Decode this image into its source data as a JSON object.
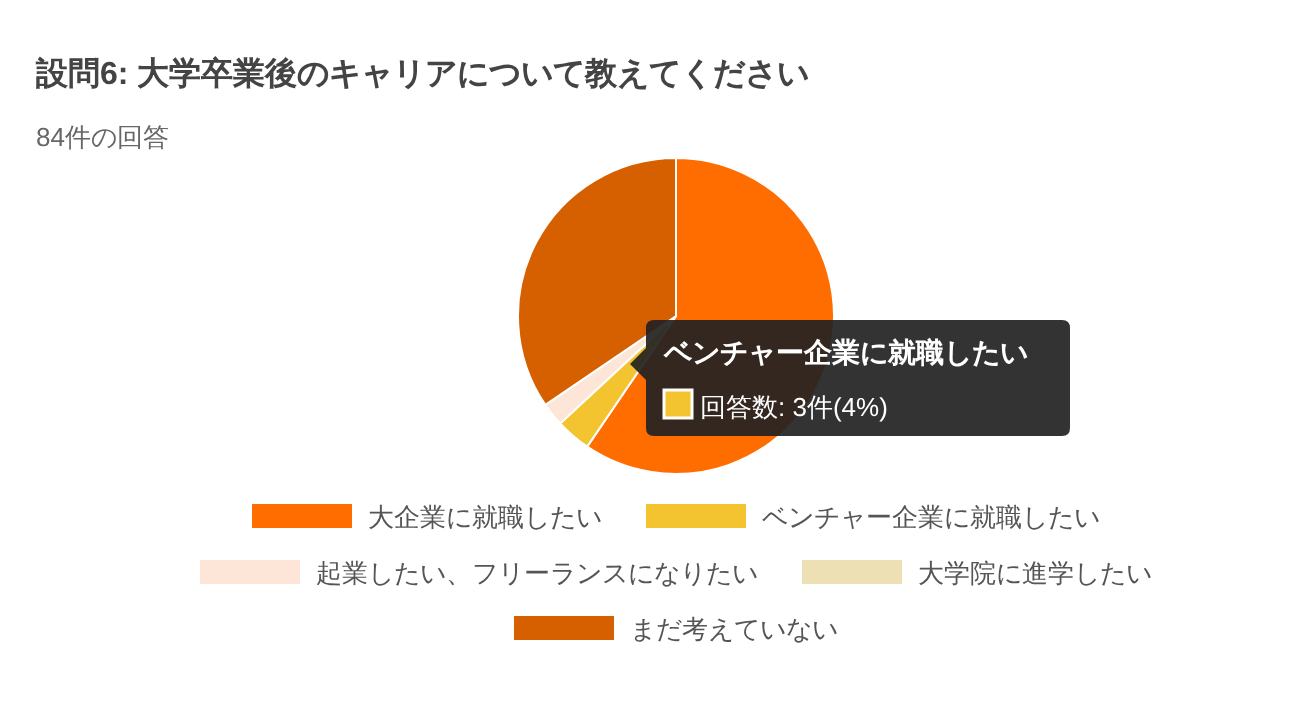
{
  "chart_data": {
    "type": "pie",
    "title": "設問6: 大学卒業後のキャリアについて教えてください",
    "subtitle": "84件の回答",
    "categories": [
      "大企業に就職したい",
      "ベンチャー企業に就職したい",
      "起業したい、フリーランスになりたい",
      "大学院に進学したい",
      "まだ考えていない"
    ],
    "values": [
      59.5,
      3.6,
      2.4,
      0,
      34.5
    ],
    "colors": [
      "#ff6d01",
      "#f4c430",
      "#fde6d8",
      "#ede0b4",
      "#d65f00"
    ],
    "legend": "bottom",
    "annotations": [
      "ベンチャー企業に就職したい",
      "回答数: 3件(4%)"
    ]
  }
}
